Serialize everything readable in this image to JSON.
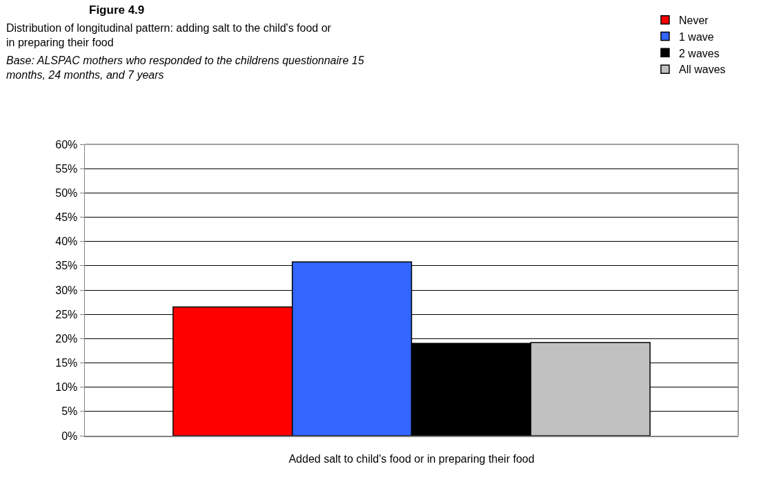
{
  "chart_data": {
    "type": "bar",
    "title": "Figure 4.9",
    "subtitle": "Distribution of longitudinal pattern: adding salt to the child's food or in preparing their food",
    "annotations": [
      "Base: ALSPAC mothers who responded to the childrens questionnaire 15 months, 24 months, and 7 years"
    ],
    "categories": [
      "Added salt to child's food or in preparing their food"
    ],
    "series": [
      {
        "name": "Never",
        "color": "#ff0000",
        "values": [
          26.5
        ]
      },
      {
        "name": "1 wave",
        "color": "#3366ff",
        "values": [
          35.8
        ]
      },
      {
        "name": "2 waves",
        "color": "#000000",
        "values": [
          19.0
        ]
      },
      {
        "name": "All waves",
        "color": "#c0c0c0",
        "values": [
          19.2
        ]
      }
    ],
    "ylim": [
      0,
      60
    ],
    "yticks": [
      {
        "value": 0,
        "label": "0%"
      },
      {
        "value": 5,
        "label": "5%"
      },
      {
        "value": 10,
        "label": "10%"
      },
      {
        "value": 15,
        "label": "15%"
      },
      {
        "value": 20,
        "label": "20%"
      },
      {
        "value": 25,
        "label": "25%"
      },
      {
        "value": 30,
        "label": "30%"
      },
      {
        "value": 35,
        "label": "35%"
      },
      {
        "value": 40,
        "label": "40%"
      },
      {
        "value": 45,
        "label": "45%"
      },
      {
        "value": 50,
        "label": "50%"
      },
      {
        "value": 55,
        "label": "55%"
      },
      {
        "value": 60,
        "label": "60%"
      }
    ],
    "grid": "y",
    "legend": "top right"
  }
}
